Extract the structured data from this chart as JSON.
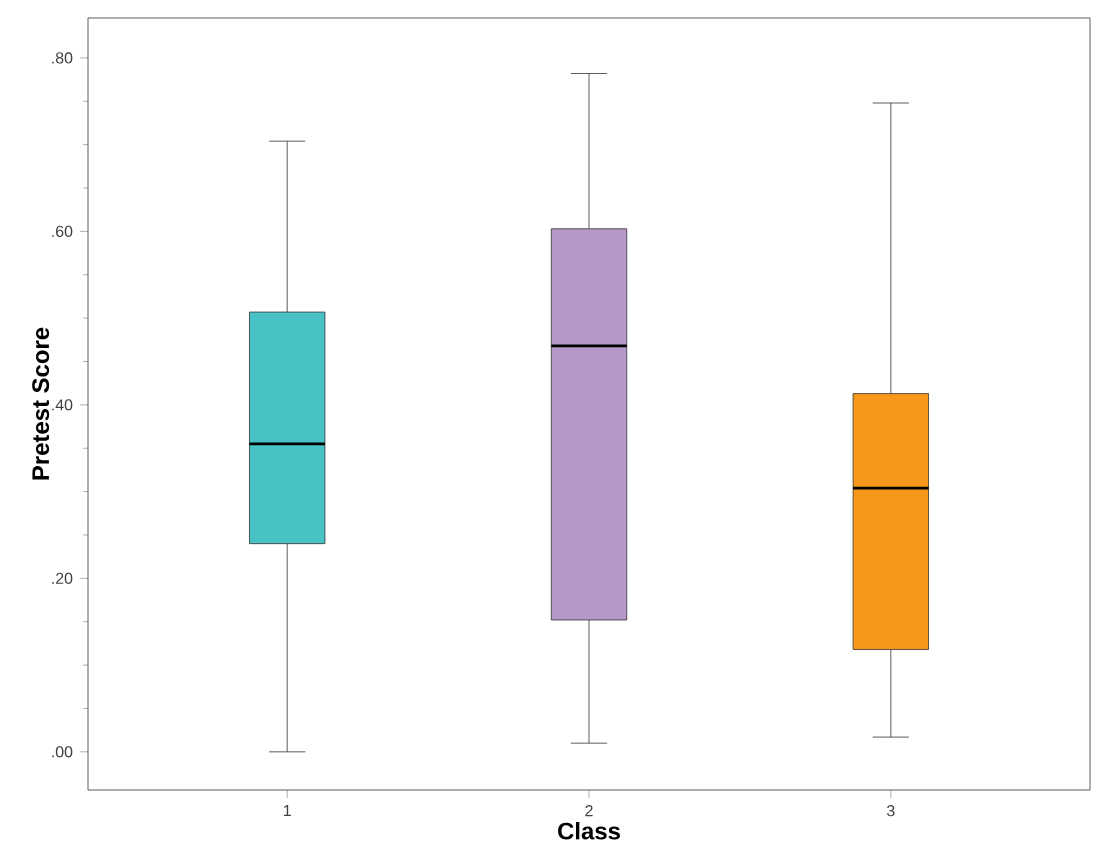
{
  "chart_data": {
    "type": "box",
    "xlabel": "Class",
    "ylabel": "Pretest Score",
    "categories": [
      "1",
      "2",
      "3"
    ],
    "colors": [
      "#48c2c5",
      "#b498c8",
      "#f7981d"
    ],
    "boxes": [
      {
        "low": 0.0,
        "q1": 0.24,
        "median": 0.355,
        "q3": 0.507,
        "high": 0.704
      },
      {
        "low": 0.01,
        "q1": 0.152,
        "median": 0.468,
        "q3": 0.603,
        "high": 0.782
      },
      {
        "low": 0.017,
        "q1": 0.118,
        "median": 0.304,
        "q3": 0.413,
        "high": 0.748
      }
    ],
    "ylim": [
      -0.044,
      0.846
    ],
    "yticks": [
      {
        "value": 0.0,
        "label": ".00"
      },
      {
        "value": 0.2,
        "label": ".20"
      },
      {
        "value": 0.4,
        "label": ".40"
      },
      {
        "value": 0.6,
        "label": ".60"
      },
      {
        "value": 0.8,
        "label": ".80"
      }
    ],
    "grid": false
  }
}
